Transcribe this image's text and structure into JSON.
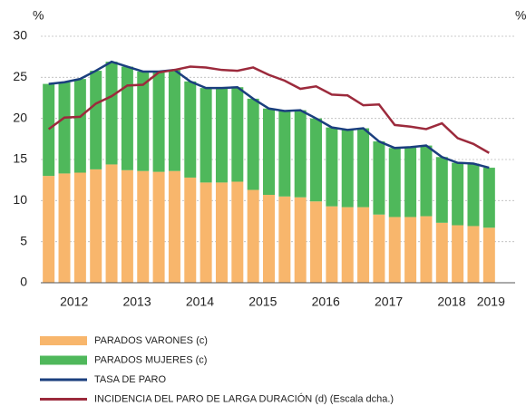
{
  "chart_data": {
    "type": "bar",
    "ylabel": "%",
    "y2label": "%",
    "categories": [
      "2012",
      null,
      null,
      null,
      "2013",
      null,
      null,
      null,
      "2014",
      null,
      null,
      null,
      "2015",
      null,
      null,
      null,
      "2016",
      null,
      null,
      null,
      "2017",
      null,
      null,
      null,
      "2018",
      null,
      null,
      null,
      "2019"
    ],
    "ylim": [
      0,
      30
    ],
    "yticks": [
      0,
      5,
      10,
      15,
      20,
      25,
      30
    ],
    "grid": true,
    "y2lim": [
      0,
      60
    ],
    "series": [
      {
        "name": "PARADOS VARONES (c)",
        "color": "#f8b66c",
        "kind": "stack",
        "values": [
          13.0,
          13.3,
          13.4,
          13.8,
          14.4,
          13.7,
          13.6,
          13.5,
          13.6,
          12.8,
          12.2,
          12.2,
          12.3,
          11.3,
          10.7,
          10.5,
          10.4,
          9.9,
          9.3,
          9.2,
          9.2,
          8.3,
          8.0,
          8.0,
          8.1,
          7.3,
          7.0,
          6.9,
          6.7
        ]
      },
      {
        "name": "PARADOS MUJERES (c)",
        "color": "#4fb85b",
        "kind": "stack",
        "values": [
          11.2,
          11.1,
          11.4,
          12.0,
          12.5,
          12.6,
          12.1,
          12.2,
          12.3,
          11.7,
          11.5,
          11.5,
          11.5,
          11.1,
          10.5,
          10.4,
          10.6,
          10.1,
          9.6,
          9.4,
          9.6,
          8.9,
          8.4,
          8.5,
          8.6,
          8.0,
          7.6,
          7.6,
          7.3
        ]
      },
      {
        "name": "TASA DE PARO",
        "color": "#1b3f7e",
        "kind": "line",
        "values": [
          24.2,
          24.4,
          24.8,
          25.8,
          26.9,
          26.3,
          25.7,
          25.7,
          25.9,
          24.5,
          23.7,
          23.7,
          23.8,
          22.4,
          21.2,
          20.9,
          21.0,
          20.0,
          18.9,
          18.6,
          18.8,
          17.2,
          16.4,
          16.5,
          16.7,
          15.3,
          14.6,
          14.5,
          14.0
        ]
      },
      {
        "name": "INCIDENCIA DEL PARO DE LARGA DURACIÓN (d) (Escala dcha.)",
        "color": "#9c2a3c",
        "kind": "line",
        "axis": "y2",
        "values": [
          37.4,
          40.2,
          40.4,
          43.6,
          45.4,
          48.0,
          48.2,
          51.2,
          51.8,
          52.6,
          52.4,
          51.8,
          51.6,
          52.4,
          50.6,
          49.2,
          47.2,
          47.8,
          45.8,
          45.6,
          43.2,
          43.4,
          38.4,
          38.0,
          37.4,
          38.8,
          35.2,
          33.8,
          31.6
        ]
      }
    ]
  }
}
